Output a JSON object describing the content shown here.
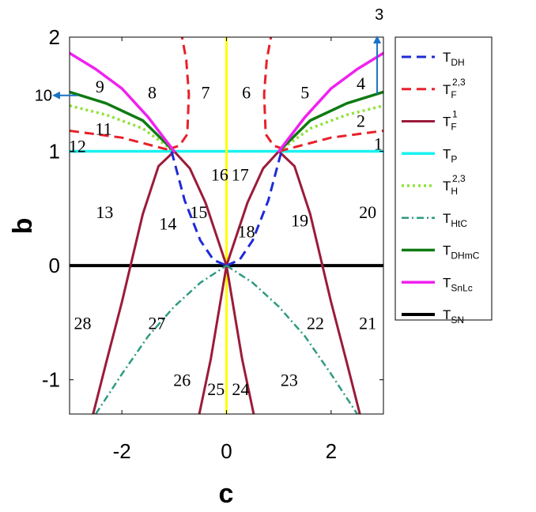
{
  "chart_data": {
    "type": "line",
    "xlabel": "c",
    "ylabel": "b",
    "xlim": [
      -3,
      3
    ],
    "ylim": [
      -1.3,
      2
    ],
    "xticks": [
      -2,
      0,
      2
    ],
    "yticks": [
      -1,
      0,
      1,
      2
    ],
    "grid": false,
    "legend_position": "right",
    "legend": [
      {
        "main": "T",
        "sub": "DH",
        "sup": "",
        "color": "#1f2ad8",
        "dash": "12,7",
        "width": 3
      },
      {
        "main": "T",
        "sub": "F",
        "sup": "2,3",
        "color": "#e8202a",
        "dash": "12,7",
        "width": 3
      },
      {
        "main": "T",
        "sub": "F",
        "sup": "1",
        "color": "#9b1b3a",
        "dash": "",
        "width": 3
      },
      {
        "main": "T",
        "sub": "P",
        "sup": "",
        "color": "#19f2f2",
        "dash": "",
        "width": 3.5
      },
      {
        "main": "T",
        "sub": "H",
        "sup": "2,3",
        "color": "#8fe33a",
        "dash": "3,4",
        "width": 3.5
      },
      {
        "main": "T",
        "sub": "HtC",
        "sup": "",
        "color": "#2f9a82",
        "dash": "9,4,2,4",
        "width": 2.5
      },
      {
        "main": "T",
        "sub": "DHmC",
        "sup": "",
        "color": "#0f7a12",
        "dash": "",
        "width": 3.5
      },
      {
        "main": "T",
        "sub": "SnLc",
        "sup": "",
        "color": "#f020f0",
        "dash": "",
        "width": 3.5
      },
      {
        "main": "T",
        "sub": "SN",
        "sup": "",
        "color": "#000000",
        "dash": "",
        "width": 4
      }
    ],
    "series": [
      {
        "key": "SN",
        "color": "#000000",
        "dash": "",
        "width": 4,
        "x": [
          -3,
          3
        ],
        "y": [
          0,
          0
        ]
      },
      {
        "key": "P",
        "color": "#19f2f2",
        "dash": "",
        "width": 3.5,
        "x": [
          -3,
          3
        ],
        "y": [
          1,
          1
        ]
      },
      {
        "key": "vertical",
        "color": "#ffff00",
        "dash": "",
        "width": 3,
        "x": [
          0,
          0
        ],
        "y": [
          -1.3,
          2
        ]
      },
      {
        "key": "F1_left",
        "color": "#9b1b3a",
        "dash": "",
        "width": 3,
        "x": [
          -2.55,
          -2.3,
          -2.0,
          -1.6,
          -1.3,
          -1.0,
          -0.7,
          -0.4,
          0.0
        ],
        "y": [
          -1.3,
          -0.85,
          -0.32,
          0.45,
          0.87,
          1.0,
          0.85,
          0.55,
          0.0
        ]
      },
      {
        "key": "F1_right",
        "color": "#9b1b3a",
        "dash": "",
        "width": 3,
        "x": [
          0.0,
          0.4,
          0.7,
          1.0,
          1.3,
          1.6,
          2.0,
          2.3,
          2.55
        ],
        "y": [
          0.0,
          0.55,
          0.85,
          1.0,
          0.87,
          0.45,
          -0.32,
          -0.85,
          -1.3
        ]
      },
      {
        "key": "F1_inner_left",
        "color": "#9b1b3a",
        "dash": "",
        "width": 3,
        "x": [
          0.0,
          -0.3,
          -0.52
        ],
        "y": [
          0.0,
          -0.82,
          -1.3
        ]
      },
      {
        "key": "F1_inner_right",
        "color": "#9b1b3a",
        "dash": "",
        "width": 3,
        "x": [
          0.0,
          0.3,
          0.52
        ],
        "y": [
          0.0,
          -0.82,
          -1.3
        ]
      },
      {
        "key": "DH_left",
        "color": "#1f2ad8",
        "dash": "12,7",
        "width": 3,
        "x": [
          -1.05,
          -0.8,
          -0.5,
          -0.25,
          0.0
        ],
        "y": [
          1.0,
          0.57,
          0.22,
          0.05,
          0.0
        ]
      },
      {
        "key": "DH_right",
        "color": "#1f2ad8",
        "dash": "12,7",
        "width": 3,
        "x": [
          0.0,
          0.25,
          0.5,
          0.8,
          1.05
        ],
        "y": [
          0.0,
          0.05,
          0.22,
          0.57,
          1.0
        ]
      },
      {
        "key": "F23_left_outer",
        "color": "#e8202a",
        "dash": "12,7",
        "width": 3,
        "x": [
          -3,
          -2.0,
          -1.0
        ],
        "y": [
          1.18,
          1.12,
          1.0
        ]
      },
      {
        "key": "F23_right_outer",
        "color": "#e8202a",
        "dash": "12,7",
        "width": 3,
        "x": [
          1.0,
          2.0,
          3
        ],
        "y": [
          1.0,
          1.12,
          1.18
        ]
      },
      {
        "key": "F23_left_inner",
        "color": "#e8202a",
        "dash": "12,7",
        "width": 3,
        "x": [
          -1.1,
          -0.9,
          -0.75,
          -0.72,
          -0.77,
          -0.85
        ],
        "y": [
          1.02,
          1.05,
          1.15,
          1.5,
          1.8,
          2.0
        ]
      },
      {
        "key": "F23_right_inner",
        "color": "#e8202a",
        "dash": "12,7",
        "width": 3,
        "x": [
          1.1,
          0.9,
          0.75,
          0.72,
          0.77,
          0.85
        ],
        "y": [
          1.02,
          1.05,
          1.15,
          1.5,
          1.8,
          2.0
        ]
      },
      {
        "key": "H23_left",
        "color": "#8fe33a",
        "dash": "3,4",
        "width": 3.5,
        "x": [
          -3,
          -2.3,
          -1.6,
          -1.0
        ],
        "y": [
          1.4,
          1.32,
          1.2,
          1.0
        ]
      },
      {
        "key": "H23_right",
        "color": "#8fe33a",
        "dash": "3,4",
        "width": 3.5,
        "x": [
          1.0,
          1.6,
          2.3,
          3
        ],
        "y": [
          1.0,
          1.2,
          1.32,
          1.4
        ]
      },
      {
        "key": "DHmC_left",
        "color": "#0f7a12",
        "dash": "",
        "width": 3.5,
        "x": [
          -3,
          -2.3,
          -1.6,
          -1.0
        ],
        "y": [
          1.52,
          1.42,
          1.27,
          1.0
        ]
      },
      {
        "key": "DHmC_right",
        "color": "#0f7a12",
        "dash": "",
        "width": 3.5,
        "x": [
          1.0,
          1.6,
          2.3,
          3
        ],
        "y": [
          1.0,
          1.27,
          1.42,
          1.52
        ]
      },
      {
        "key": "SnLc_left",
        "color": "#f020f0",
        "dash": "",
        "width": 3.5,
        "x": [
          -3,
          -2.5,
          -2.0,
          -1.5,
          -1.0
        ],
        "y": [
          1.86,
          1.72,
          1.55,
          1.3,
          1.0
        ]
      },
      {
        "key": "SnLc_right",
        "color": "#f020f0",
        "dash": "",
        "width": 3.5,
        "x": [
          1.0,
          1.5,
          2.0,
          2.5,
          3
        ],
        "y": [
          1.0,
          1.3,
          1.55,
          1.72,
          1.86
        ]
      },
      {
        "key": "HtC_left",
        "color": "#2f9a82",
        "dash": "9,4,2,4",
        "width": 2.5,
        "x": [
          -2.5,
          -2.0,
          -1.5,
          -1.0,
          -0.5,
          0.0
        ],
        "y": [
          -1.3,
          -0.95,
          -0.62,
          -0.36,
          -0.15,
          0.0
        ]
      },
      {
        "key": "HtC_right",
        "color": "#2f9a82",
        "dash": "9,4,2,4",
        "width": 2.5,
        "x": [
          0.0,
          0.5,
          1.0,
          1.5,
          2.0,
          2.5
        ],
        "y": [
          0.0,
          -0.15,
          -0.36,
          -0.62,
          -0.95,
          -1.3
        ]
      }
    ],
    "region_labels": [
      {
        "text": "1",
        "x": 2.9,
        "y": 1.07
      },
      {
        "text": "2",
        "x": 2.57,
        "y": 1.27
      },
      {
        "text": "4",
        "x": 2.57,
        "y": 1.6
      },
      {
        "text": "5",
        "x": 1.5,
        "y": 1.52
      },
      {
        "text": "6",
        "x": 0.38,
        "y": 1.52
      },
      {
        "text": "7",
        "x": -0.4,
        "y": 1.52
      },
      {
        "text": "8",
        "x": -1.42,
        "y": 1.52
      },
      {
        "text": "9",
        "x": -2.42,
        "y": 1.57
      },
      {
        "text": "11",
        "x": -2.35,
        "y": 1.2
      },
      {
        "text": "12",
        "x": -2.85,
        "y": 1.05
      },
      {
        "text": "16",
        "x": -0.13,
        "y": 0.8
      },
      {
        "text": "17",
        "x": 0.26,
        "y": 0.8
      },
      {
        "text": "13",
        "x": -2.33,
        "y": 0.47
      },
      {
        "text": "14",
        "x": -1.12,
        "y": 0.37
      },
      {
        "text": "15",
        "x": -0.53,
        "y": 0.47
      },
      {
        "text": "18",
        "x": 0.38,
        "y": 0.3
      },
      {
        "text": "19",
        "x": 1.4,
        "y": 0.4
      },
      {
        "text": "20",
        "x": 2.7,
        "y": 0.47
      },
      {
        "text": "28",
        "x": -2.75,
        "y": -0.5
      },
      {
        "text": "27",
        "x": -1.33,
        "y": -0.5
      },
      {
        "text": "22",
        "x": 1.7,
        "y": -0.5
      },
      {
        "text": "21",
        "x": 2.7,
        "y": -0.5
      },
      {
        "text": "26",
        "x": -0.85,
        "y": -1.0
      },
      {
        "text": "25",
        "x": -0.2,
        "y": -1.08
      },
      {
        "text": "24",
        "x": 0.27,
        "y": -1.08
      },
      {
        "text": "23",
        "x": 1.2,
        "y": -1.0
      }
    ],
    "annotations": [
      {
        "text": "3",
        "x": 2.92,
        "y": 2.2,
        "arrow": "up",
        "arrow_from": [
          2.88,
          1.5
        ],
        "arrow_to": [
          2.88,
          2.0
        ]
      },
      {
        "text": "10",
        "x": -3.5,
        "y": 1.49,
        "arrow": "left",
        "arrow_from": [
          -2.85,
          1.49
        ],
        "arrow_to": [
          -3.3,
          1.49
        ]
      }
    ],
    "arrow_color": "#1a72c4"
  }
}
